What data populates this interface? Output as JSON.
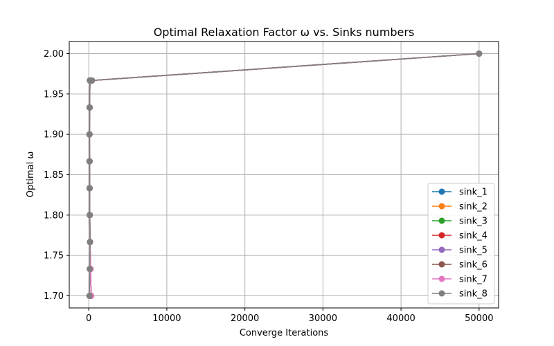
{
  "chart_data": {
    "type": "line",
    "title": "Optimal Relaxation Factor ω vs. Sinks numbers",
    "xlabel": "Converge Iterations",
    "ylabel": "Optimal ω",
    "xlim": [
      -2500,
      52500
    ],
    "ylim": [
      1.685,
      2.015
    ],
    "xticks": [
      0,
      10000,
      20000,
      30000,
      40000,
      50000
    ],
    "yticks": [
      1.7,
      1.75,
      1.8,
      1.85,
      1.9,
      1.95,
      2.0
    ],
    "xtick_labels": [
      "0",
      "10000",
      "20000",
      "30000",
      "40000",
      "50000"
    ],
    "ytick_labels": [
      "1.70",
      "1.75",
      "1.80",
      "1.85",
      "1.90",
      "1.95",
      "2.00"
    ],
    "grid": true,
    "legend_position": "lower right",
    "series": [
      {
        "name": "sink_1",
        "color": "#1f77b4",
        "x": [
          300,
          220,
          160,
          130,
          110,
          100,
          95,
          110,
          150,
          250,
          400,
          50000
        ],
        "y": [
          1.7,
          1.7333,
          1.7667,
          1.8,
          1.8333,
          1.8667,
          1.9,
          1.9333,
          1.9667,
          1.9667,
          1.9667,
          2.0
        ]
      },
      {
        "name": "sink_2",
        "color": "#ff7f0e",
        "x": [
          300,
          220,
          160,
          130,
          110,
          100,
          95,
          110,
          150,
          250,
          400,
          50000
        ],
        "y": [
          1.7,
          1.7333,
          1.7667,
          1.8,
          1.8333,
          1.8667,
          1.9,
          1.9333,
          1.9667,
          1.9667,
          1.9667,
          2.0
        ]
      },
      {
        "name": "sink_3",
        "color": "#2ca02c",
        "x": [
          300,
          220,
          160,
          130,
          110,
          100,
          95,
          110,
          150,
          250,
          400,
          50000
        ],
        "y": [
          1.7,
          1.7333,
          1.7667,
          1.8,
          1.8333,
          1.8667,
          1.9,
          1.9333,
          1.9667,
          1.9667,
          1.9667,
          2.0
        ]
      },
      {
        "name": "sink_4",
        "color": "#d62728",
        "x": [
          300,
          220,
          160,
          130,
          110,
          100,
          95,
          110,
          150,
          250,
          400,
          50000
        ],
        "y": [
          1.7,
          1.7333,
          1.7667,
          1.8,
          1.8333,
          1.8667,
          1.9,
          1.9333,
          1.9667,
          1.9667,
          1.9667,
          2.0
        ]
      },
      {
        "name": "sink_5",
        "color": "#9467bd",
        "x": [
          300,
          220,
          160,
          130,
          110,
          100,
          95,
          110,
          150,
          250,
          400,
          50000
        ],
        "y": [
          1.7,
          1.7333,
          1.7667,
          1.8,
          1.8333,
          1.8667,
          1.9,
          1.9333,
          1.9667,
          1.9667,
          1.9667,
          2.0
        ]
      },
      {
        "name": "sink_6",
        "color": "#8c564b",
        "x": [
          300,
          220,
          160,
          130,
          110,
          100,
          95,
          110,
          150,
          250,
          400,
          50000
        ],
        "y": [
          1.7,
          1.7333,
          1.7667,
          1.8,
          1.8333,
          1.8667,
          1.9,
          1.9333,
          1.9667,
          1.9667,
          1.9667,
          2.0
        ]
      },
      {
        "name": "sink_7",
        "color": "#e377c2",
        "x": [
          300,
          220,
          160,
          130,
          110,
          100,
          95,
          110,
          150,
          250,
          400,
          50000
        ],
        "y": [
          1.7,
          1.7333,
          1.7667,
          1.8,
          1.8333,
          1.8667,
          1.9,
          1.9333,
          1.9667,
          1.9667,
          1.9667,
          2.0
        ]
      },
      {
        "name": "sink_8",
        "color": "#7f7f7f",
        "x": [
          80,
          120,
          160,
          130,
          110,
          100,
          95,
          110,
          150,
          250,
          400,
          50000
        ],
        "y": [
          1.7,
          1.7333,
          1.7667,
          1.8,
          1.8333,
          1.8667,
          1.9,
          1.9333,
          1.9667,
          1.9667,
          1.9667,
          2.0
        ]
      }
    ]
  }
}
